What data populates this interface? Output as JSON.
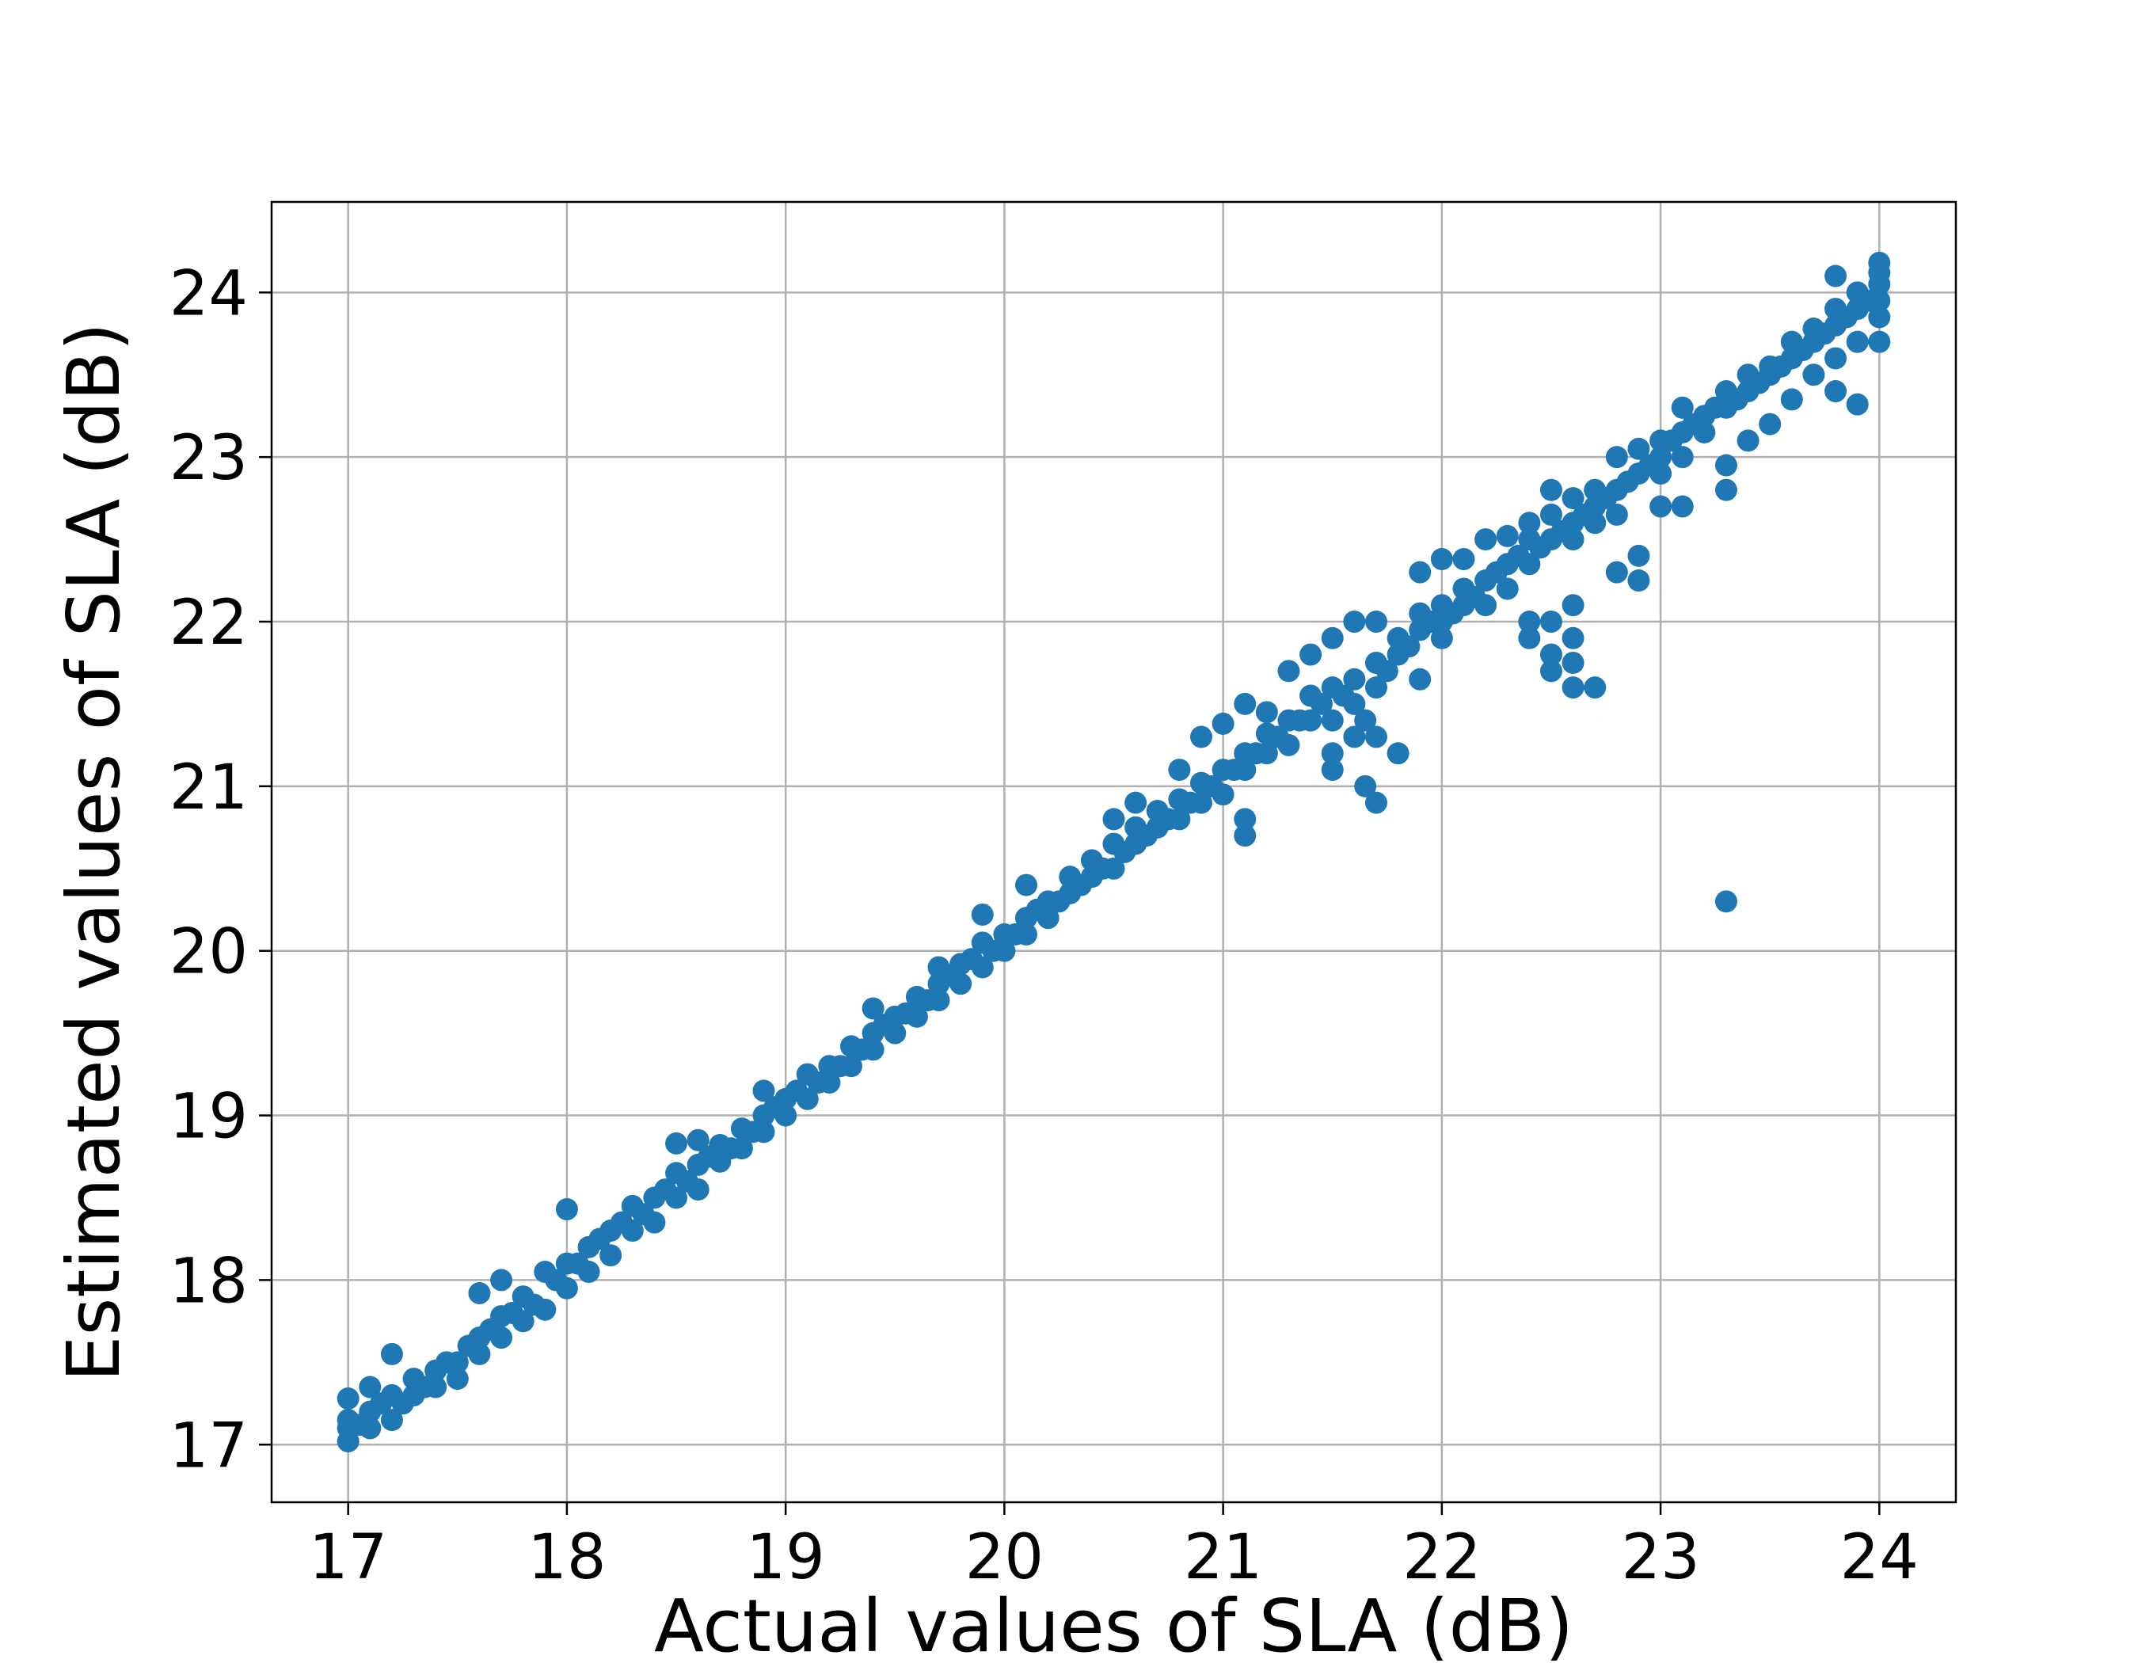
{
  "chart_data": {
    "type": "scatter",
    "title": "",
    "xlabel": "Actual values of SLA (dB)",
    "ylabel": "Estimated values of SLA (dB)",
    "xlim": [
      16.65,
      24.35
    ],
    "ylim": [
      16.65,
      24.55
    ],
    "xticks": [
      "17",
      "18",
      "19",
      "20",
      "21",
      "22",
      "23",
      "24"
    ],
    "yticks": [
      "17",
      "18",
      "19",
      "20",
      "21",
      "22",
      "23",
      "24"
    ],
    "grid": true,
    "marker_color": "#1f77b4",
    "series": [
      {
        "points": [
          [
            17.0,
            17.02
          ],
          [
            17.0,
            17.1
          ],
          [
            17.0,
            17.15
          ],
          [
            17.0,
            17.28
          ],
          [
            17.05,
            17.12
          ],
          [
            17.1,
            17.1
          ],
          [
            17.1,
            17.2
          ],
          [
            17.1,
            17.35
          ],
          [
            17.15,
            17.25
          ],
          [
            17.2,
            17.15
          ],
          [
            17.2,
            17.3
          ],
          [
            17.2,
            17.55
          ],
          [
            17.25,
            17.25
          ],
          [
            17.3,
            17.3
          ],
          [
            17.3,
            17.4
          ],
          [
            17.35,
            17.35
          ],
          [
            17.4,
            17.35
          ],
          [
            17.4,
            17.45
          ],
          [
            17.45,
            17.5
          ],
          [
            17.5,
            17.4
          ],
          [
            17.5,
            17.5
          ],
          [
            17.55,
            17.6
          ],
          [
            17.6,
            17.55
          ],
          [
            17.6,
            17.65
          ],
          [
            17.6,
            17.92
          ],
          [
            17.65,
            17.7
          ],
          [
            17.7,
            17.65
          ],
          [
            17.7,
            17.78
          ],
          [
            17.7,
            18.0
          ],
          [
            17.75,
            17.8
          ],
          [
            17.8,
            17.75
          ],
          [
            17.8,
            17.9
          ],
          [
            17.85,
            17.85
          ],
          [
            17.9,
            17.82
          ],
          [
            17.9,
            18.05
          ],
          [
            17.95,
            18.0
          ],
          [
            18.0,
            17.95
          ],
          [
            18.0,
            18.1
          ],
          [
            18.0,
            18.43
          ],
          [
            18.05,
            18.1
          ],
          [
            18.1,
            18.05
          ],
          [
            18.1,
            18.2
          ],
          [
            18.15,
            18.25
          ],
          [
            18.2,
            18.15
          ],
          [
            18.2,
            18.3
          ],
          [
            18.25,
            18.35
          ],
          [
            18.3,
            18.3
          ],
          [
            18.3,
            18.45
          ],
          [
            18.35,
            18.4
          ],
          [
            18.4,
            18.35
          ],
          [
            18.4,
            18.5
          ],
          [
            18.45,
            18.55
          ],
          [
            18.5,
            18.5
          ],
          [
            18.5,
            18.65
          ],
          [
            18.5,
            18.83
          ],
          [
            18.55,
            18.6
          ],
          [
            18.6,
            18.55
          ],
          [
            18.6,
            18.7
          ],
          [
            18.6,
            18.85
          ],
          [
            18.65,
            18.75
          ],
          [
            18.7,
            18.72
          ],
          [
            18.7,
            18.82
          ],
          [
            18.75,
            18.8
          ],
          [
            18.8,
            18.8
          ],
          [
            18.8,
            18.92
          ],
          [
            18.85,
            18.9
          ],
          [
            18.9,
            18.9
          ],
          [
            18.9,
            19.0
          ],
          [
            18.9,
            19.15
          ],
          [
            18.95,
            19.05
          ],
          [
            19.0,
            19.0
          ],
          [
            19.0,
            19.1
          ],
          [
            19.05,
            19.15
          ],
          [
            19.1,
            19.1
          ],
          [
            19.1,
            19.25
          ],
          [
            19.15,
            19.2
          ],
          [
            19.2,
            19.2
          ],
          [
            19.2,
            19.3
          ],
          [
            19.25,
            19.3
          ],
          [
            19.3,
            19.3
          ],
          [
            19.3,
            19.42
          ],
          [
            19.35,
            19.4
          ],
          [
            19.4,
            19.4
          ],
          [
            19.4,
            19.5
          ],
          [
            19.4,
            19.65
          ],
          [
            19.45,
            19.55
          ],
          [
            19.5,
            19.5
          ],
          [
            19.5,
            19.6
          ],
          [
            19.55,
            19.62
          ],
          [
            19.6,
            19.6
          ],
          [
            19.6,
            19.72
          ],
          [
            19.65,
            19.7
          ],
          [
            19.7,
            19.7
          ],
          [
            19.7,
            19.8
          ],
          [
            19.7,
            19.9
          ],
          [
            19.75,
            19.85
          ],
          [
            19.8,
            19.8
          ],
          [
            19.8,
            19.92
          ],
          [
            19.85,
            19.95
          ],
          [
            19.9,
            19.9
          ],
          [
            19.9,
            20.05
          ],
          [
            19.9,
            20.22
          ],
          [
            19.95,
            20.0
          ],
          [
            20.0,
            20.0
          ],
          [
            20.0,
            20.1
          ],
          [
            20.05,
            20.1
          ],
          [
            20.1,
            20.1
          ],
          [
            20.1,
            20.2
          ],
          [
            20.1,
            20.4
          ],
          [
            20.15,
            20.25
          ],
          [
            20.2,
            20.2
          ],
          [
            20.2,
            20.3
          ],
          [
            20.25,
            20.3
          ],
          [
            20.3,
            20.35
          ],
          [
            20.3,
            20.45
          ],
          [
            20.35,
            20.4
          ],
          [
            20.4,
            20.45
          ],
          [
            20.4,
            20.55
          ],
          [
            20.45,
            20.5
          ],
          [
            20.5,
            20.5
          ],
          [
            20.5,
            20.65
          ],
          [
            20.5,
            20.8
          ],
          [
            20.55,
            20.6
          ],
          [
            20.6,
            20.65
          ],
          [
            20.6,
            20.75
          ],
          [
            20.6,
            20.9
          ],
          [
            20.65,
            20.7
          ],
          [
            20.7,
            20.75
          ],
          [
            20.7,
            20.85
          ],
          [
            20.75,
            20.8
          ],
          [
            20.8,
            20.8
          ],
          [
            20.8,
            20.92
          ],
          [
            20.8,
            21.1
          ],
          [
            20.85,
            20.9
          ],
          [
            20.9,
            20.9
          ],
          [
            20.9,
            21.02
          ],
          [
            20.9,
            21.3
          ],
          [
            20.95,
            21.0
          ],
          [
            21.0,
            20.95
          ],
          [
            21.0,
            21.1
          ],
          [
            21.0,
            21.38
          ],
          [
            21.05,
            21.1
          ],
          [
            21.1,
            20.7
          ],
          [
            21.1,
            20.8
          ],
          [
            21.1,
            21.1
          ],
          [
            21.1,
            21.2
          ],
          [
            21.1,
            21.5
          ],
          [
            21.15,
            21.2
          ],
          [
            21.2,
            21.2
          ],
          [
            21.2,
            21.32
          ],
          [
            21.2,
            21.45
          ],
          [
            21.25,
            21.3
          ],
          [
            21.3,
            21.25
          ],
          [
            21.3,
            21.4
          ],
          [
            21.3,
            21.7
          ],
          [
            21.35,
            21.4
          ],
          [
            21.4,
            21.4
          ],
          [
            21.4,
            21.55
          ],
          [
            21.4,
            21.8
          ],
          [
            21.45,
            21.5
          ],
          [
            21.5,
            21.1
          ],
          [
            21.5,
            21.2
          ],
          [
            21.5,
            21.4
          ],
          [
            21.5,
            21.6
          ],
          [
            21.5,
            21.9
          ],
          [
            21.55,
            21.55
          ],
          [
            21.6,
            21.3
          ],
          [
            21.6,
            21.5
          ],
          [
            21.6,
            21.65
          ],
          [
            21.6,
            22.0
          ],
          [
            21.65,
            21.0
          ],
          [
            21.65,
            21.4
          ],
          [
            21.7,
            20.9
          ],
          [
            21.7,
            21.3
          ],
          [
            21.7,
            21.6
          ],
          [
            21.7,
            21.75
          ],
          [
            21.7,
            22.0
          ],
          [
            21.75,
            21.7
          ],
          [
            21.8,
            21.2
          ],
          [
            21.8,
            21.8
          ],
          [
            21.8,
            21.9
          ],
          [
            21.85,
            21.85
          ],
          [
            21.9,
            21.65
          ],
          [
            21.9,
            21.95
          ],
          [
            21.9,
            22.05
          ],
          [
            21.9,
            22.3
          ],
          [
            21.95,
            22.0
          ],
          [
            22.0,
            21.9
          ],
          [
            22.0,
            22.0
          ],
          [
            22.0,
            22.1
          ],
          [
            22.0,
            22.38
          ],
          [
            22.05,
            22.05
          ],
          [
            22.1,
            22.1
          ],
          [
            22.1,
            22.2
          ],
          [
            22.1,
            22.38
          ],
          [
            22.15,
            22.15
          ],
          [
            22.2,
            22.1
          ],
          [
            22.2,
            22.25
          ],
          [
            22.2,
            22.5
          ],
          [
            22.25,
            22.3
          ],
          [
            22.3,
            22.2
          ],
          [
            22.3,
            22.35
          ],
          [
            22.3,
            22.52
          ],
          [
            22.35,
            22.4
          ],
          [
            22.4,
            21.9
          ],
          [
            22.4,
            22.0
          ],
          [
            22.4,
            22.35
          ],
          [
            22.4,
            22.5
          ],
          [
            22.4,
            22.6
          ],
          [
            22.45,
            22.45
          ],
          [
            22.5,
            21.7
          ],
          [
            22.5,
            21.8
          ],
          [
            22.5,
            22.0
          ],
          [
            22.5,
            22.5
          ],
          [
            22.5,
            22.65
          ],
          [
            22.5,
            22.8
          ],
          [
            22.55,
            22.55
          ],
          [
            22.6,
            21.6
          ],
          [
            22.6,
            21.75
          ],
          [
            22.6,
            21.9
          ],
          [
            22.6,
            22.1
          ],
          [
            22.6,
            22.5
          ],
          [
            22.6,
            22.6
          ],
          [
            22.6,
            22.75
          ],
          [
            22.65,
            22.65
          ],
          [
            22.7,
            21.6
          ],
          [
            22.7,
            22.6
          ],
          [
            22.7,
            22.7
          ],
          [
            22.7,
            22.8
          ],
          [
            22.75,
            22.75
          ],
          [
            22.8,
            22.3
          ],
          [
            22.8,
            22.65
          ],
          [
            22.8,
            22.8
          ],
          [
            22.8,
            23.0
          ],
          [
            22.85,
            22.85
          ],
          [
            22.9,
            22.25
          ],
          [
            22.9,
            22.4
          ],
          [
            22.9,
            22.9
          ],
          [
            22.9,
            23.05
          ],
          [
            22.95,
            22.95
          ],
          [
            23.0,
            22.7
          ],
          [
            23.0,
            22.9
          ],
          [
            23.0,
            23.0
          ],
          [
            23.0,
            23.1
          ],
          [
            23.05,
            23.1
          ],
          [
            23.1,
            22.7
          ],
          [
            23.1,
            23.0
          ],
          [
            23.1,
            23.15
          ],
          [
            23.1,
            23.3
          ],
          [
            23.15,
            23.2
          ],
          [
            23.2,
            23.15
          ],
          [
            23.2,
            23.25
          ],
          [
            23.25,
            23.3
          ],
          [
            23.3,
            20.3
          ],
          [
            23.3,
            22.8
          ],
          [
            23.3,
            22.95
          ],
          [
            23.3,
            23.3
          ],
          [
            23.3,
            23.4
          ],
          [
            23.35,
            23.35
          ],
          [
            23.4,
            23.1
          ],
          [
            23.4,
            23.4
          ],
          [
            23.4,
            23.5
          ],
          [
            23.45,
            23.45
          ],
          [
            23.5,
            23.2
          ],
          [
            23.5,
            23.5
          ],
          [
            23.5,
            23.55
          ],
          [
            23.55,
            23.55
          ],
          [
            23.6,
            23.35
          ],
          [
            23.6,
            23.6
          ],
          [
            23.6,
            23.7
          ],
          [
            23.65,
            23.65
          ],
          [
            23.7,
            23.5
          ],
          [
            23.7,
            23.7
          ],
          [
            23.7,
            23.78
          ],
          [
            23.75,
            23.75
          ],
          [
            23.8,
            23.4
          ],
          [
            23.8,
            23.6
          ],
          [
            23.8,
            23.8
          ],
          [
            23.8,
            23.9
          ],
          [
            23.8,
            24.1
          ],
          [
            23.85,
            23.85
          ],
          [
            23.9,
            23.32
          ],
          [
            23.9,
            23.7
          ],
          [
            23.9,
            23.9
          ],
          [
            23.9,
            24.0
          ],
          [
            23.95,
            23.95
          ],
          [
            24.0,
            23.7
          ],
          [
            24.0,
            23.85
          ],
          [
            24.0,
            23.95
          ],
          [
            24.0,
            24.05
          ],
          [
            24.0,
            24.12
          ],
          [
            24.0,
            24.18
          ]
        ]
      }
    ]
  }
}
